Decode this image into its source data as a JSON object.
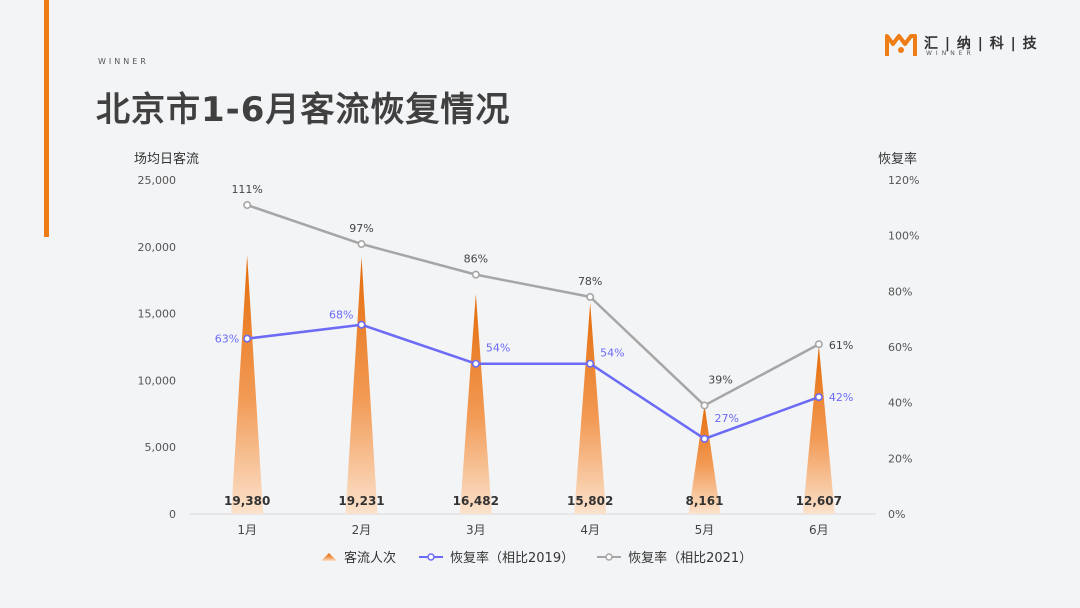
{
  "header": {
    "winner_tag": "WINNER",
    "title": "北京市1-6月客流恢复情况"
  },
  "logo": {
    "text": "汇 | 纳 | 科 | 技",
    "sub": "WINNER"
  },
  "colors": {
    "accent": "#ee7d16",
    "series_2019": "#6b6bf5",
    "series_2021": "#a6a6a6"
  },
  "chart_data": {
    "type": "bar",
    "categories": [
      "1月",
      "2月",
      "3月",
      "4月",
      "5月",
      "6月"
    ],
    "y_left_label": "场均日客流",
    "y_right_label": "恢复率",
    "y_left_ticks": [
      "0",
      "5,000",
      "10,000",
      "15,000",
      "20,000",
      "25,000"
    ],
    "y_left_lim": [
      0,
      25000
    ],
    "y_right_ticks": [
      "0%",
      "20%",
      "40%",
      "60%",
      "80%",
      "100%",
      "120%"
    ],
    "y_right_lim": [
      0,
      120
    ],
    "series": [
      {
        "name": "客流人次",
        "type": "bar",
        "axis": "left",
        "values": [
          19380,
          19231,
          16482,
          15802,
          8161,
          12607
        ],
        "labels": [
          "19,380",
          "19,231",
          "16,482",
          "15,802",
          "8,161",
          "12,607"
        ]
      },
      {
        "name": "恢复率（相比2019）",
        "type": "line",
        "axis": "right",
        "values": [
          63,
          68,
          54,
          54,
          27,
          42
        ],
        "labels": [
          "63%",
          "68%",
          "54%",
          "54%",
          "27%",
          "42%"
        ]
      },
      {
        "name": "恢复率（相比2021）",
        "type": "line",
        "axis": "right",
        "values": [
          111,
          97,
          86,
          78,
          39,
          61
        ],
        "labels": [
          "111%",
          "97%",
          "86%",
          "78%",
          "39%",
          "61%"
        ]
      }
    ]
  }
}
